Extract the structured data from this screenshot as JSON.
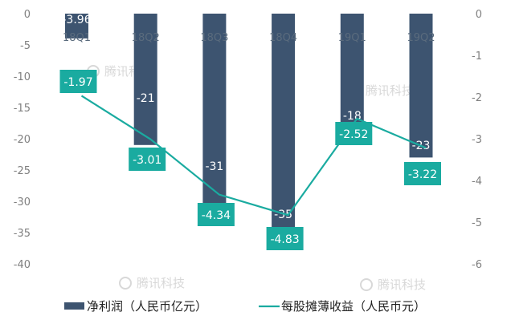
{
  "chart_data": {
    "type": "bar",
    "categories": [
      "18Q1",
      "18Q2",
      "18Q3",
      "18Q4",
      "19Q1",
      "19Q2"
    ],
    "category_labels_shown": [
      "18Q1",
      "18Q2",
      "18Q3",
      "18Q4",
      "19Q1",
      "19Q2"
    ],
    "series": [
      {
        "name": "净利润（人民币亿元）",
        "type": "bar",
        "axis": "left",
        "color": "#3d5470",
        "values": [
          -3.96,
          -21,
          -31,
          -35,
          -18,
          -23
        ],
        "labels": [
          "-3.96",
          "-21",
          "-31",
          "-35",
          "-18",
          "-23"
        ]
      },
      {
        "name": "每股摊薄收益（人民币元）",
        "type": "line",
        "axis": "right",
        "color": "#1aaba0",
        "values": [
          -1.97,
          -3.01,
          -4.34,
          -4.83,
          -2.52,
          -3.22
        ],
        "labels": [
          "-1.97",
          "-3.01",
          "-4.34",
          "-4.83",
          "-2.52",
          "-3.22"
        ]
      }
    ],
    "y_left": {
      "ylim": [
        -40,
        0
      ],
      "ticks": [
        0,
        -5,
        -10,
        -15,
        -20,
        -25,
        -30,
        -35,
        -40
      ]
    },
    "y_right": {
      "ylim": [
        -6,
        0
      ],
      "ticks": [
        0,
        -1,
        -2,
        -3,
        -4,
        -5,
        -6
      ]
    },
    "legend_position": "bottom",
    "watermark": "腾讯科技"
  }
}
